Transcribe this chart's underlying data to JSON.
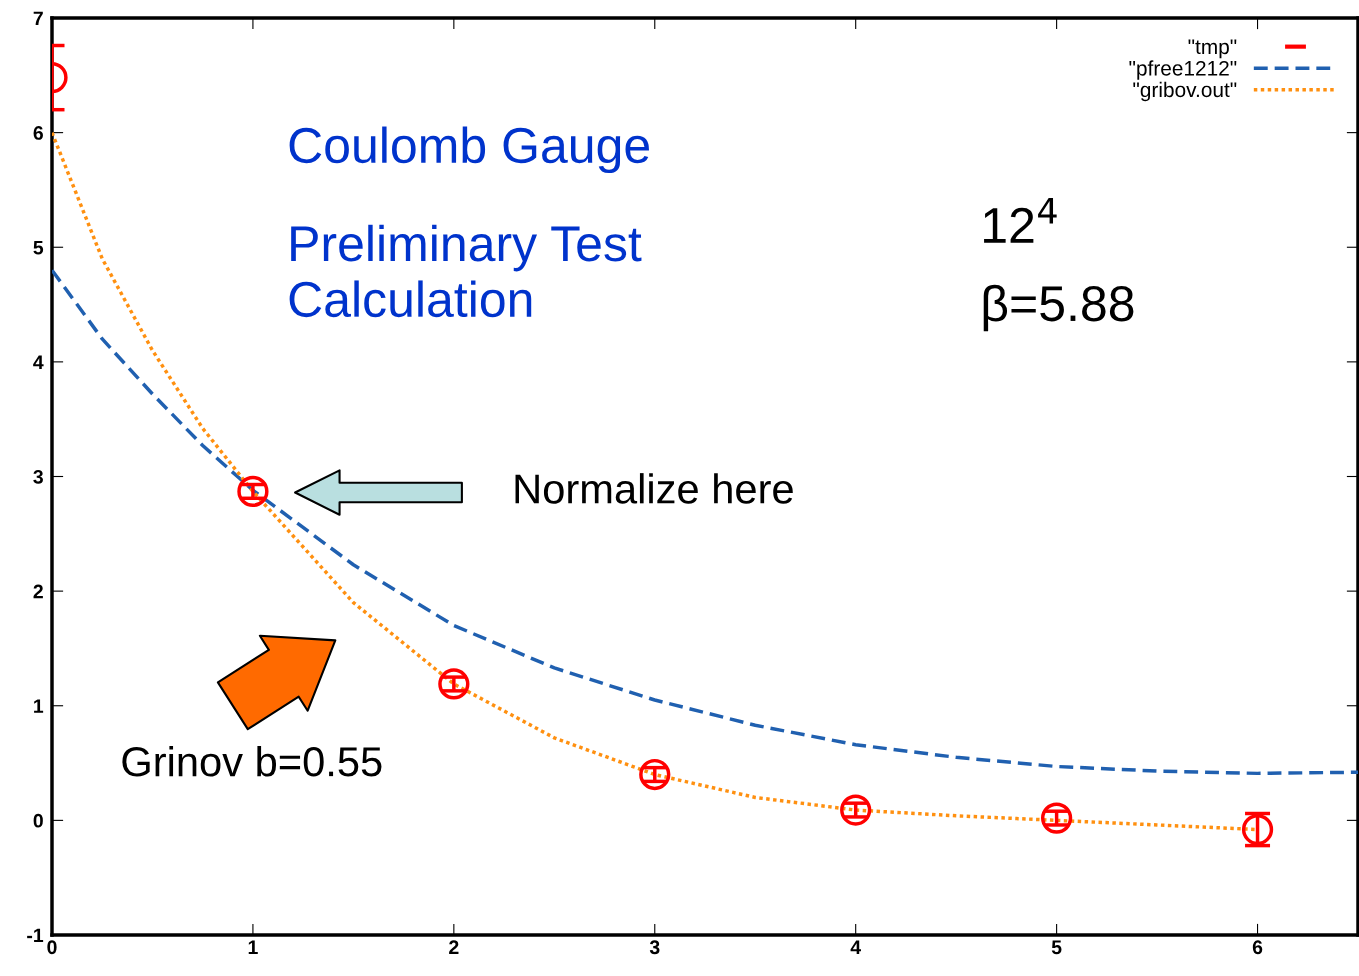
{
  "chart_data": {
    "type": "line",
    "xlim": [
      0,
      6.5
    ],
    "xticks": [
      0,
      1,
      2,
      3,
      4,
      5,
      6
    ],
    "ylim": [
      -1,
      7
    ],
    "yticks": [
      -1,
      0,
      1,
      2,
      3,
      4,
      5,
      6,
      7
    ],
    "grid": false,
    "legend": "top right",
    "series": [
      {
        "name": "\"tmp\"",
        "type": "scatter",
        "color": "#ff0000",
        "marker": "circle",
        "x": [
          0,
          1,
          2,
          3,
          4,
          5,
          6
        ],
        "values": [
          6.48,
          2.87,
          1.19,
          0.4,
          0.09,
          0.02,
          -0.08
        ],
        "errors": [
          0.28,
          0.06,
          0.06,
          0.06,
          0.06,
          0.06,
          0.14
        ]
      },
      {
        "name": "\"pfree1212\"",
        "color": "#2060b0",
        "line_style": "dashed",
        "x": [
          0,
          0.25,
          0.5,
          0.75,
          1,
          1.5,
          2,
          2.5,
          3,
          3.5,
          4,
          4.5,
          5,
          5.5,
          6,
          6.5
        ],
        "values": [
          4.8,
          4.2,
          3.72,
          3.27,
          2.88,
          2.23,
          1.7,
          1.33,
          1.05,
          0.83,
          0.66,
          0.55,
          0.47,
          0.43,
          0.41,
          0.42
        ]
      },
      {
        "name": "\"gribov.out\"",
        "color": "#ff9010",
        "line_style": "dotted",
        "x": [
          0,
          0.25,
          0.5,
          0.75,
          1,
          1.5,
          2,
          2.5,
          3,
          3.5,
          4,
          4.5,
          5,
          5.5,
          6
        ],
        "values": [
          6.0,
          4.9,
          4.1,
          3.42,
          2.87,
          1.9,
          1.19,
          0.72,
          0.4,
          0.2,
          0.09,
          0.04,
          0.0,
          -0.04,
          -0.08
        ]
      }
    ],
    "annotations": [
      "Coulomb Gauge",
      "Preliminary Test\nCalculation",
      "12$^{4}$",
      "β=5.88",
      "Normalize here",
      "Grinov b=0.55"
    ]
  }
}
